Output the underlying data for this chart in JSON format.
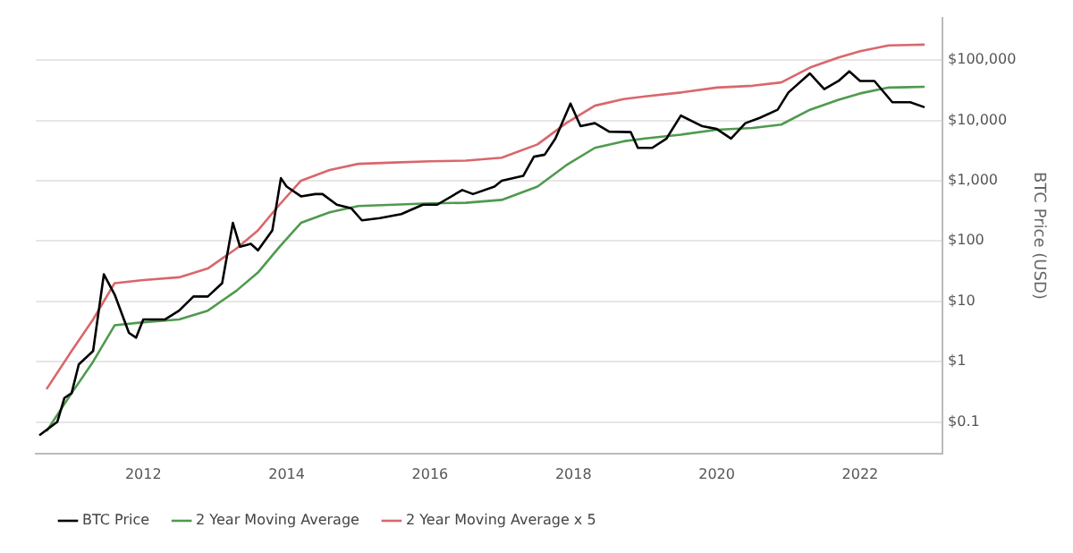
{
  "chart_data": {
    "type": "line",
    "ylabel": "BTC Price (USD)",
    "log": "y",
    "grid": "y",
    "legend": "bottom",
    "marker": "none",
    "line_style": "solid",
    "xlim": [
      2010.5,
      2023.15
    ],
    "xticks": [
      2012,
      2014,
      2016,
      2018,
      2020,
      2022
    ],
    "ylim": [
      0.03,
      500000
    ],
    "yticks": [
      {
        "value": 0.1,
        "label": "$0.1"
      },
      {
        "value": 1,
        "label": "$1"
      },
      {
        "value": 10,
        "label": "$10"
      },
      {
        "value": 100,
        "label": "$100"
      },
      {
        "value": 1000,
        "label": "$1,000"
      },
      {
        "value": 10000,
        "label": "$10,000"
      },
      {
        "value": 100000,
        "label": "$100,000"
      }
    ],
    "series": [
      {
        "name": "BTC Price",
        "color": "#000000",
        "x": [
          2010.55,
          2010.8,
          2010.9,
          2011.0,
          2011.1,
          2011.3,
          2011.45,
          2011.6,
          2011.8,
          2011.9,
          2012.0,
          2012.3,
          2012.5,
          2012.7,
          2012.9,
          2013.1,
          2013.25,
          2013.35,
          2013.5,
          2013.6,
          2013.8,
          2013.92,
          2014.0,
          2014.2,
          2014.4,
          2014.5,
          2014.7,
          2014.9,
          2015.05,
          2015.3,
          2015.6,
          2015.9,
          2016.1,
          2016.45,
          2016.6,
          2016.9,
          2017.0,
          2017.3,
          2017.45,
          2017.6,
          2017.75,
          2017.96,
          2018.1,
          2018.3,
          2018.5,
          2018.8,
          2018.9,
          2019.1,
          2019.3,
          2019.5,
          2019.8,
          2020.0,
          2020.2,
          2020.4,
          2020.6,
          2020.85,
          2021.0,
          2021.3,
          2021.5,
          2021.7,
          2021.85,
          2022.0,
          2022.2,
          2022.45,
          2022.7,
          2022.9
        ],
        "values": [
          0.06,
          0.1,
          0.25,
          0.3,
          0.9,
          1.5,
          28,
          13,
          3,
          2.5,
          5,
          5,
          7,
          12,
          12,
          20,
          200,
          80,
          90,
          70,
          150,
          1100,
          800,
          550,
          600,
          600,
          400,
          350,
          220,
          240,
          280,
          400,
          400,
          700,
          600,
          800,
          1000,
          1200,
          2500,
          2700,
          5000,
          19000,
          8000,
          9000,
          6500,
          6400,
          3500,
          3500,
          5000,
          12000,
          8000,
          7200,
          5000,
          9000,
          11000,
          15000,
          29000,
          60000,
          33000,
          45000,
          65000,
          45000,
          45000,
          20000,
          20000,
          16500
        ]
      },
      {
        "name": "2 Year Moving Average",
        "color": "#4f9a4f",
        "x": [
          2010.65,
          2011.0,
          2011.3,
          2011.6,
          2012.0,
          2012.5,
          2012.9,
          2013.3,
          2013.6,
          2013.9,
          2014.2,
          2014.6,
          2015.0,
          2015.5,
          2016.0,
          2016.5,
          2017.0,
          2017.5,
          2017.9,
          2018.3,
          2018.7,
          2019.0,
          2019.5,
          2020.0,
          2020.5,
          2020.9,
          2021.3,
          2021.7,
          2022.0,
          2022.4,
          2022.9
        ],
        "values": [
          0.07,
          0.3,
          1,
          4,
          4.5,
          5,
          7,
          15,
          30,
          80,
          200,
          300,
          380,
          400,
          420,
          430,
          480,
          800,
          1800,
          3500,
          4500,
          5000,
          5800,
          7000,
          7500,
          8500,
          15000,
          22000,
          28000,
          35000,
          36000
        ]
      },
      {
        "name": "2 Year Moving Average x 5",
        "color": "#d9676b",
        "x": [
          2010.65,
          2011.0,
          2011.3,
          2011.6,
          2012.0,
          2012.5,
          2012.9,
          2013.3,
          2013.6,
          2013.9,
          2014.2,
          2014.6,
          2015.0,
          2015.5,
          2016.0,
          2016.5,
          2017.0,
          2017.5,
          2017.9,
          2018.3,
          2018.7,
          2019.0,
          2019.5,
          2020.0,
          2020.5,
          2020.9,
          2021.3,
          2021.7,
          2022.0,
          2022.4,
          2022.9
        ],
        "values": [
          0.35,
          1.5,
          5,
          20,
          22.5,
          25,
          35,
          75,
          150,
          400,
          1000,
          1500,
          1900,
          2000,
          2100,
          2150,
          2400,
          4000,
          9000,
          17500,
          22500,
          25000,
          29000,
          35000,
          37500,
          42500,
          75000,
          110000,
          140000,
          175000,
          180000
        ]
      }
    ]
  }
}
